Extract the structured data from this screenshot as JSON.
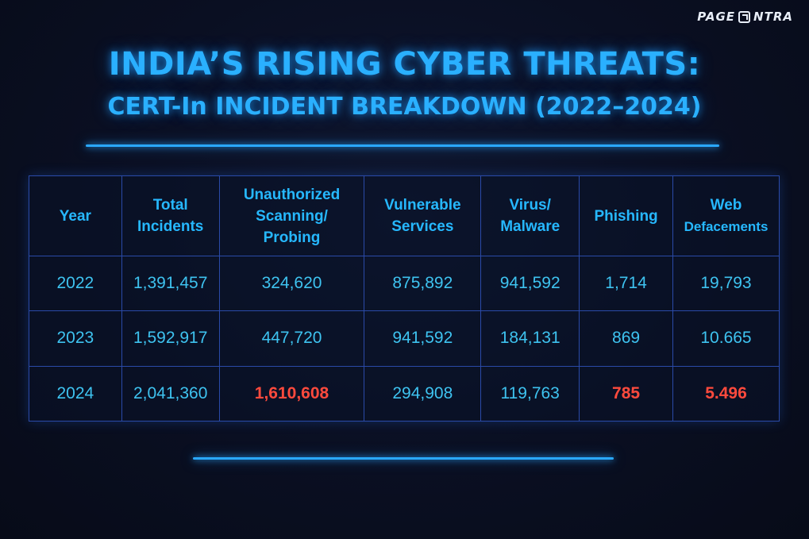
{
  "brand": {
    "logo_text_left": "PAGE",
    "logo_text_right": "NTRA",
    "logo_icon": "arrow-box-icon"
  },
  "header": {
    "title": "INDIA’S RISING CYBER THREATS:",
    "subtitle": "CERT-In INCIDENT BREAKDOWN (2022–2024)"
  },
  "colors": {
    "accent": "#2ab0ff",
    "highlight": "#ff4a3d",
    "background": "#0a0f22",
    "grid": "#2a4aa8"
  },
  "table": {
    "columns": [
      {
        "line1": "Year",
        "line2": "",
        "line3": ""
      },
      {
        "line1": "Total",
        "line2": "Incidents",
        "line3": ""
      },
      {
        "line1": "Unauthorized",
        "line2": "Scanning/",
        "line3": "Probing"
      },
      {
        "line1": "Vulnerable",
        "line2": "Services",
        "line3": ""
      },
      {
        "line1": "Virus/",
        "line2": "Malware",
        "line3": ""
      },
      {
        "line1": "Phishing",
        "line2": "",
        "line3": ""
      },
      {
        "line1": "Web",
        "line2": "Defacements",
        "line3": ""
      }
    ],
    "rows": [
      [
        "2022",
        "1,391,457",
        "324,620",
        "875,892",
        "941,592",
        "1,714",
        "19,793"
      ],
      [
        "2023",
        "1,592,917",
        "447,720",
        "941,592",
        "184,131",
        "869",
        "10.665"
      ],
      [
        "2024",
        "2,041,360",
        "1,610,608",
        "294,908",
        "119,763",
        "785",
        "5.496"
      ]
    ]
  }
}
